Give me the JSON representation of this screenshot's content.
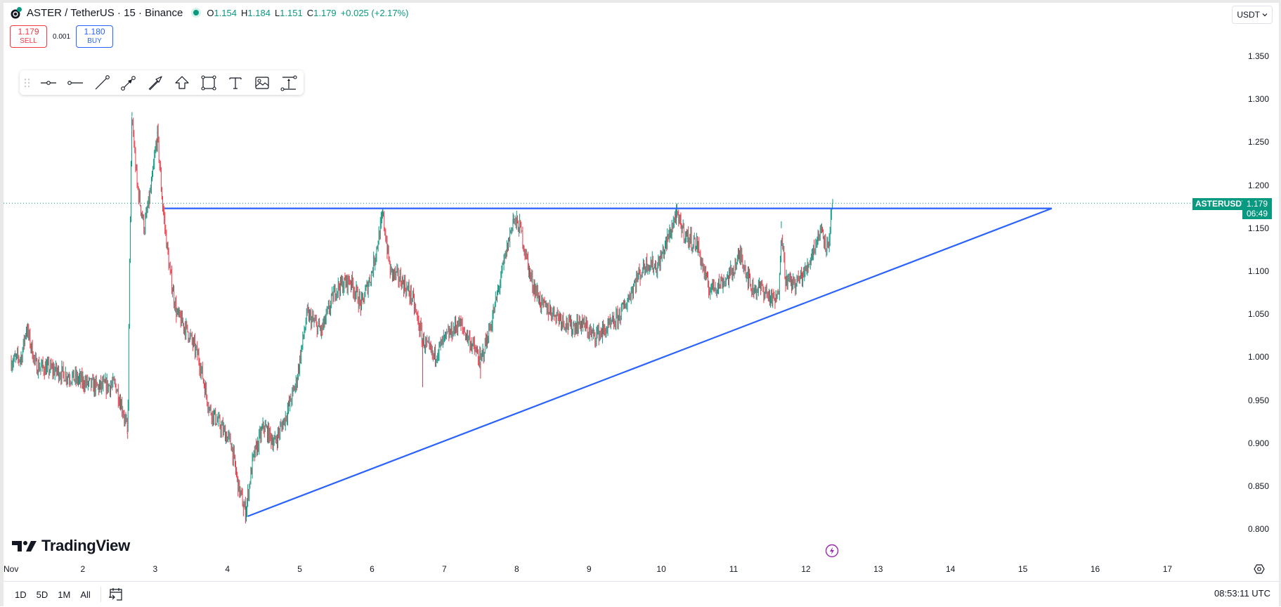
{
  "header": {
    "symbol_title": "ASTER / TetherUS · 15 · Binance",
    "ohlc": [
      {
        "k": "O",
        "v": "1.154"
      },
      {
        "k": "H",
        "v": "1.184"
      },
      {
        "k": "L",
        "v": "1.151"
      },
      {
        "k": "C",
        "v": "1.179"
      },
      {
        "k": "",
        "v": "+0.025 (+2.17%)"
      }
    ]
  },
  "trade": {
    "sell_price": "1.179",
    "sell_label": "SELL",
    "spread": "0.001",
    "buy_price": "1.180",
    "buy_label": "BUY"
  },
  "drawing_toolbar": {
    "tools": [
      "drag-handle",
      "horizontal-ray",
      "horizontal-line-one-point",
      "trend-line",
      "arrow-marker",
      "arrow",
      "arrow-up",
      "rectangle",
      "text",
      "image",
      "price-range"
    ]
  },
  "price_scale": {
    "currency": "USDT",
    "ticks": [
      "1.350",
      "1.300",
      "1.250",
      "1.200",
      "1.150",
      "1.100",
      "1.050",
      "1.000",
      "0.950",
      "0.900",
      "0.850",
      "0.800"
    ],
    "last_price_symbol": "ASTERUSDT",
    "last_price": "1.179",
    "countdown": "06:49"
  },
  "time_scale": {
    "ticks": [
      "Nov",
      "2",
      "3",
      "4",
      "5",
      "6",
      "7",
      "8",
      "9",
      "10",
      "11",
      "12",
      "13",
      "14",
      "15",
      "16",
      "17"
    ]
  },
  "bottom_bar": {
    "ranges": [
      "1D",
      "5D",
      "1M",
      "All"
    ],
    "clock": "08:53:11 UTC"
  },
  "branding": {
    "logo_text": "TradingView"
  },
  "colors": {
    "up": "#089981",
    "down": "#f23645",
    "neutral": "#787b86",
    "trendline": "#2962ff",
    "price_line": "#089981",
    "bolt": "#9c27b0"
  },
  "chart_data": {
    "type": "candlestick",
    "title": "ASTER / TetherUS · 15 · Binance",
    "interval": "15m",
    "ylim": [
      0.78,
      1.38
    ],
    "x_unit": "day of November",
    "ylabel": "USDT",
    "last": {
      "open": 1.154,
      "high": 1.184,
      "low": 1.151,
      "close": 1.179,
      "change": 0.025,
      "change_pct": 2.17
    },
    "price_path": [
      [
        1.0,
        0.995
      ],
      [
        1.15,
        1.0
      ],
      [
        1.22,
        1.035
      ],
      [
        1.35,
        0.99
      ],
      [
        1.6,
        0.985
      ],
      [
        1.9,
        0.975
      ],
      [
        2.2,
        0.965
      ],
      [
        2.45,
        0.968
      ],
      [
        2.55,
        0.94
      ],
      [
        2.62,
        0.912
      ],
      [
        2.65,
        1.14
      ],
      [
        2.68,
        1.28
      ],
      [
        2.75,
        1.2
      ],
      [
        2.85,
        1.15
      ],
      [
        2.95,
        1.2
      ],
      [
        3.03,
        1.26
      ],
      [
        3.1,
        1.18
      ],
      [
        3.2,
        1.1
      ],
      [
        3.3,
        1.05
      ],
      [
        3.45,
        1.03
      ],
      [
        3.6,
        1.0
      ],
      [
        3.75,
        0.94
      ],
      [
        3.9,
        0.92
      ],
      [
        4.05,
        0.9
      ],
      [
        4.15,
        0.85
      ],
      [
        4.25,
        0.82
      ],
      [
        4.35,
        0.88
      ],
      [
        4.5,
        0.92
      ],
      [
        4.65,
        0.9
      ],
      [
        4.8,
        0.93
      ],
      [
        4.95,
        0.97
      ],
      [
        5.1,
        1.05
      ],
      [
        5.3,
        1.03
      ],
      [
        5.5,
        1.08
      ],
      [
        5.7,
        1.09
      ],
      [
        5.85,
        1.06
      ],
      [
        6.0,
        1.1
      ],
      [
        6.15,
        1.165
      ],
      [
        6.25,
        1.1
      ],
      [
        6.4,
        1.09
      ],
      [
        6.55,
        1.07
      ],
      [
        6.7,
        1.02
      ],
      [
        6.85,
        1.0
      ],
      [
        7.0,
        1.02
      ],
      [
        7.2,
        1.04
      ],
      [
        7.35,
        1.02
      ],
      [
        7.5,
        0.995
      ],
      [
        7.65,
        1.04
      ],
      [
        7.8,
        1.1
      ],
      [
        7.95,
        1.16
      ],
      [
        8.05,
        1.15
      ],
      [
        8.2,
        1.09
      ],
      [
        8.35,
        1.06
      ],
      [
        8.55,
        1.05
      ],
      [
        8.75,
        1.035
      ],
      [
        8.9,
        1.04
      ],
      [
        9.05,
        1.025
      ],
      [
        9.2,
        1.03
      ],
      [
        9.35,
        1.04
      ],
      [
        9.5,
        1.06
      ],
      [
        9.65,
        1.09
      ],
      [
        9.8,
        1.11
      ],
      [
        9.95,
        1.105
      ],
      [
        10.1,
        1.14
      ],
      [
        10.2,
        1.165
      ],
      [
        10.35,
        1.14
      ],
      [
        10.5,
        1.13
      ],
      [
        10.65,
        1.08
      ],
      [
        10.8,
        1.085
      ],
      [
        10.95,
        1.095
      ],
      [
        11.1,
        1.12
      ],
      [
        11.25,
        1.08
      ],
      [
        11.4,
        1.08
      ],
      [
        11.55,
        1.065
      ],
      [
        11.62,
        1.07
      ],
      [
        11.66,
        1.15
      ],
      [
        11.72,
        1.09
      ],
      [
        11.85,
        1.085
      ],
      [
        12.0,
        1.1
      ],
      [
        12.12,
        1.13
      ],
      [
        12.22,
        1.15
      ],
      [
        12.3,
        1.125
      ],
      [
        12.37,
        1.179
      ]
    ],
    "drawings": {
      "resistance_line": {
        "from": [
          3.13,
          1.173
        ],
        "to": [
          15.4,
          1.173
        ],
        "color": "#2962ff"
      },
      "support_line": {
        "from": [
          4.28,
          0.815
        ],
        "to": [
          15.4,
          1.173
        ],
        "color": "#2962ff"
      },
      "last_price_line": {
        "y": 1.179,
        "style": "dotted",
        "color": "#089981"
      }
    }
  }
}
